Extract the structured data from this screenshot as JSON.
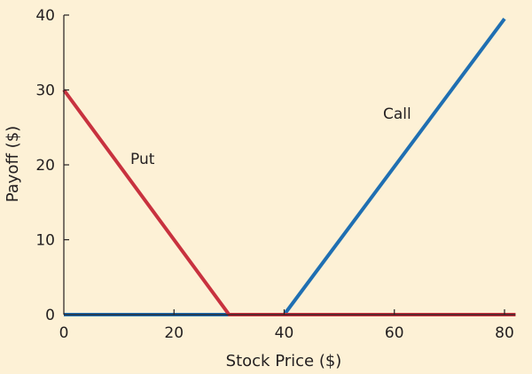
{
  "chart_data": {
    "type": "line",
    "title": "",
    "xlabel": "Stock Price ($)",
    "ylabel": "Payoff ($)",
    "xlim": [
      0,
      82
    ],
    "ylim": [
      0,
      40
    ],
    "xticks": [
      0,
      20,
      40,
      60,
      80
    ],
    "yticks": [
      0,
      10,
      20,
      30,
      40
    ],
    "grid": false,
    "series": [
      {
        "name": "Call",
        "color": "#1f6fb2",
        "x": [
          0,
          40,
          80
        ],
        "y": [
          0,
          0,
          39.5
        ]
      },
      {
        "name": "Put",
        "color": "#c8323f",
        "x": [
          0,
          30,
          82
        ],
        "y": [
          30,
          0,
          0
        ]
      }
    ]
  }
}
